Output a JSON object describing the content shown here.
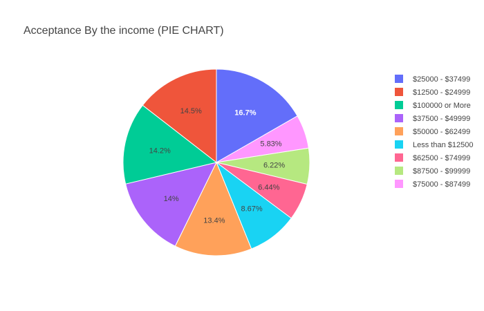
{
  "chart_data": {
    "type": "pie",
    "title": "Acceptance By the income (PIE CHART)",
    "direction": "clockwise",
    "start": "top",
    "legend": "right",
    "slices": [
      {
        "label": "$25000 - $37499",
        "value": 16.7,
        "text": "16.7%",
        "color": "#636efa",
        "text_color": "#ffffff",
        "bold": true
      },
      {
        "label": "$75000 - $87499",
        "value": 5.83,
        "text": "5.83%",
        "color": "#ff97ff",
        "text_color": "#444444"
      },
      {
        "label": "$87500 - $99999",
        "value": 6.22,
        "text": "6.22%",
        "color": "#b6e880",
        "text_color": "#444444"
      },
      {
        "label": "$62500 - $74999",
        "value": 6.44,
        "text": "6.44%",
        "color": "#ff6692",
        "text_color": "#444444"
      },
      {
        "label": "Less than $12500",
        "value": 8.67,
        "text": "8.67%",
        "color": "#19d3f3",
        "text_color": "#444444"
      },
      {
        "label": "$50000 - $62499",
        "value": 13.4,
        "text": "13.4%",
        "color": "#ffa15a",
        "text_color": "#444444"
      },
      {
        "label": "$37500 - $49999",
        "value": 14.0,
        "text": "14%",
        "color": "#ab63fa",
        "text_color": "#444444"
      },
      {
        "label": "$100000 or More",
        "value": 14.2,
        "text": "14.2%",
        "color": "#00cc96",
        "text_color": "#444444"
      },
      {
        "label": "$12500 - $24999",
        "value": 14.5,
        "text": "14.5%",
        "color": "#ef553b",
        "text_color": "#444444"
      }
    ],
    "legend_order": [
      "$25000 - $37499",
      "$12500 - $24999",
      "$100000 or More",
      "$37500 - $49999",
      "$50000 - $62499",
      "Less than $12500",
      "$62500 - $74999",
      "$87500 - $99999",
      "$75000 - $87499"
    ]
  }
}
